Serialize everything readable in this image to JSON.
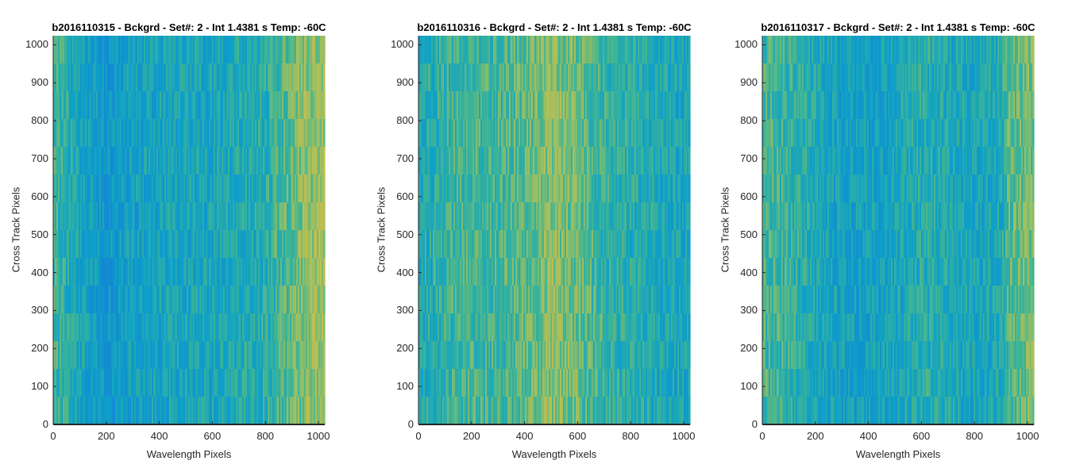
{
  "chart_data": [
    {
      "type": "heatmap",
      "title": "b2016110315 - Bckgrd - Set#: 2 - Int 1.4381 s Temp: -60C",
      "xlabel": "Wavelength Pixels",
      "ylabel": "Cross Track Pixels",
      "xlim": [
        0,
        1024
      ],
      "ylim": [
        0,
        1024
      ],
      "xticks": [
        0,
        200,
        400,
        600,
        800,
        1000
      ],
      "yticks": [
        0,
        100,
        200,
        300,
        400,
        500,
        600,
        700,
        800,
        900,
        1000
      ],
      "colormap": "parula",
      "column_profile": {
        "x": [
          0,
          100,
          200,
          300,
          400,
          500,
          600,
          700,
          800,
          880,
          950,
          1024
        ],
        "level": [
          0.55,
          0.35,
          0.2,
          0.3,
          0.35,
          0.35,
          0.35,
          0.4,
          0.45,
          0.6,
          0.75,
          0.8
        ]
      }
    },
    {
      "type": "heatmap",
      "title": "b2016110316 - Bckgrd - Set#: 2 - Int 1.4381 s Temp: -60C",
      "xlabel": "Wavelength Pixels",
      "ylabel": "Cross Track Pixels",
      "xlim": [
        0,
        1024
      ],
      "ylim": [
        0,
        1024
      ],
      "xticks": [
        0,
        200,
        400,
        600,
        800,
        1000
      ],
      "yticks": [
        0,
        100,
        200,
        300,
        400,
        500,
        600,
        700,
        800,
        900,
        1000
      ],
      "colormap": "parula",
      "column_profile": {
        "x": [
          0,
          100,
          200,
          300,
          400,
          500,
          600,
          700,
          800,
          900,
          1024
        ],
        "level": [
          0.4,
          0.5,
          0.55,
          0.55,
          0.6,
          0.75,
          0.65,
          0.5,
          0.45,
          0.4,
          0.35
        ]
      }
    },
    {
      "type": "heatmap",
      "title": "b2016110317 - Bckgrd - Set#: 2 - Int 1.4381 s Temp: -60C",
      "xlabel": "Wavelength Pixels",
      "ylabel": "Cross Track Pixels",
      "xlim": [
        0,
        1024
      ],
      "ylim": [
        0,
        1024
      ],
      "xticks": [
        0,
        200,
        400,
        600,
        800,
        1000
      ],
      "yticks": [
        0,
        100,
        200,
        300,
        400,
        500,
        600,
        700,
        800,
        900,
        1000
      ],
      "colormap": "parula",
      "column_profile": {
        "x": [
          0,
          100,
          200,
          300,
          400,
          500,
          600,
          700,
          800,
          900,
          930,
          1024
        ],
        "level": [
          0.55,
          0.5,
          0.4,
          0.3,
          0.3,
          0.35,
          0.45,
          0.4,
          0.35,
          0.4,
          0.6,
          0.7
        ]
      }
    }
  ]
}
